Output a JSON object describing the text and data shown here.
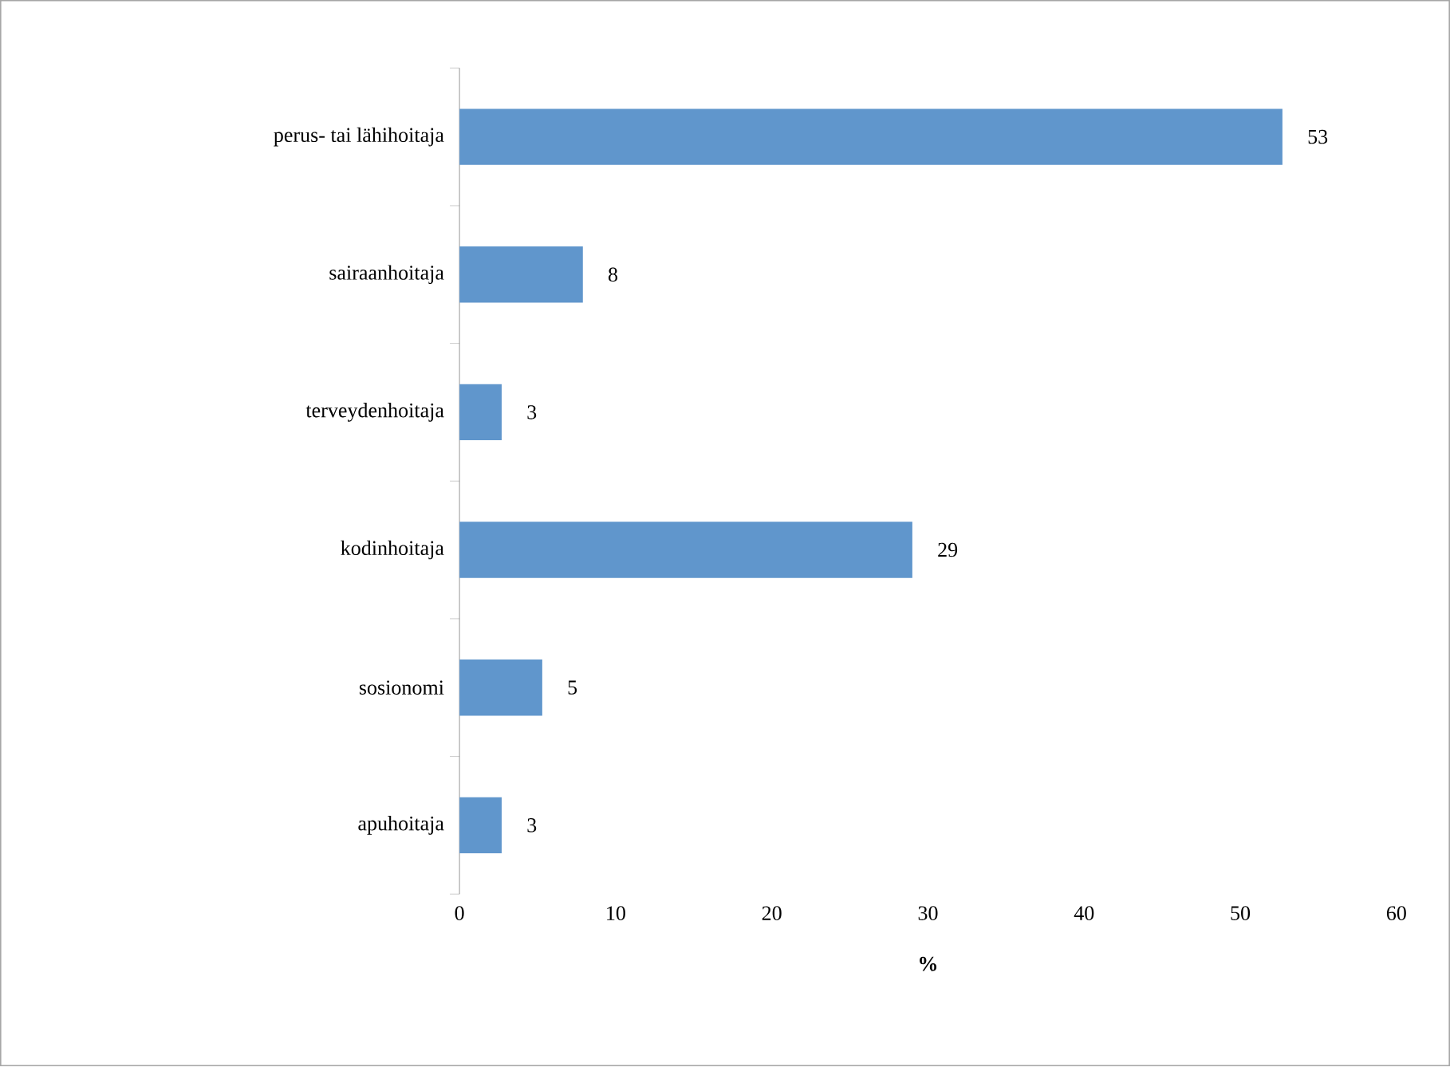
{
  "chart_data": {
    "type": "bar",
    "orientation": "horizontal",
    "xlabel": "%",
    "categories": [
      "perus- tai lähihoitaja",
      "sairaanhoitaja",
      "terveydenhoitaja",
      "kodinhoitaja",
      "sosionomi",
      "apuhoitaja"
    ],
    "values": [
      52.7,
      7.9,
      2.7,
      29.0,
      5.3,
      2.7
    ],
    "value_labels": [
      "53",
      "8",
      "3",
      "29",
      "5",
      "3"
    ],
    "color": "#6096cc",
    "xlim": [
      0,
      60
    ],
    "xticks": [
      0,
      10,
      20,
      30,
      40,
      50,
      60
    ],
    "grid": false
  }
}
